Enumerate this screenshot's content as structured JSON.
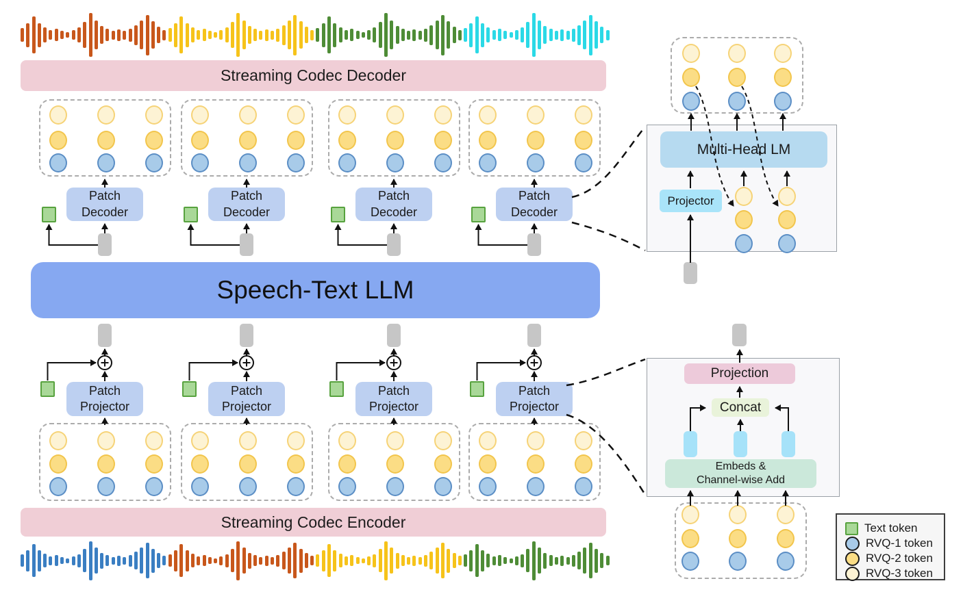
{
  "labels": {
    "codec_decoder": "Streaming Codec Decoder",
    "codec_encoder": "Streaming Codec Encoder",
    "llm": "Speech-Text LLM",
    "patch_decoder": "Patch\nDecoder",
    "patch_projector": "Patch\nProjector",
    "multi_head_lm": "Multi-Head LM",
    "projector": "Projector",
    "projection": "Projection",
    "concat": "Concat",
    "embeds": "Embeds &\nChannel-wise Add"
  },
  "legend": {
    "items": [
      {
        "type": "text-token",
        "label": "Text token"
      },
      {
        "type": "rvq1",
        "label": "RVQ-1 token"
      },
      {
        "type": "rvq2",
        "label": "RVQ-2 token"
      },
      {
        "type": "rvq3",
        "label": "RVQ-3 token"
      }
    ]
  },
  "structure": {
    "num_patch_clusters": 4,
    "token_grid_rows": [
      "rvq3",
      "rvq2",
      "rvq1"
    ],
    "token_grid_cols": 3
  },
  "colors": {
    "llm_bar": "#86a8f1",
    "patch_box": "#bdd0f1",
    "codec_bar": "#f0ced6",
    "gray_pill": "#c6c6c6",
    "text_token_fill": "#a9d898",
    "text_token_border": "#57a23e",
    "rvq1_fill": "#a8cbe9",
    "rvq1_border": "#5b8ec5",
    "rvq2_fill": "#fbdd85",
    "rvq2_border": "#f2c54c",
    "rvq3_fill": "#fdf3d4",
    "rvq3_border": "#f6d377",
    "multi_head": "#b6daf0",
    "projector": "#a9e4f9",
    "projection": "#edcada",
    "concat": "#e9f3da",
    "embeds": "#cbe8da",
    "cyan_pill": "#a6e2f9"
  },
  "waveform": {
    "pattern": [
      0.32,
      0.55,
      0.85,
      0.55,
      0.35,
      0.22,
      0.28,
      0.18,
      0.12,
      0.22,
      0.34,
      0.6,
      1.0,
      0.66,
      0.4,
      0.28,
      0.2,
      0.26,
      0.2,
      0.3,
      0.45,
      0.66,
      0.92,
      0.62,
      0.38,
      0.24
    ],
    "top_segments": [
      "#c8571b",
      "#f6c31a",
      "#4e8c36",
      "#2bd9e6"
    ],
    "bottom_segments": [
      "#3a7ec2",
      "#c8571b",
      "#f6c31a",
      "#4e8c36"
    ]
  }
}
